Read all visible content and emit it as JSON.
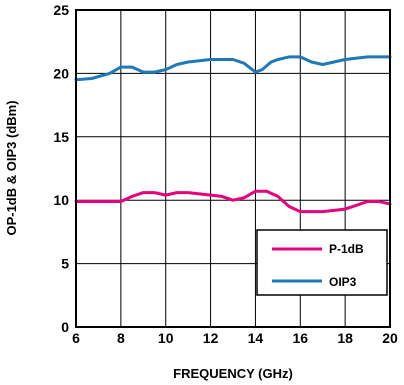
{
  "chart_data": {
    "type": "line",
    "title": "",
    "xlabel": "FREQUENCY (GHz)",
    "ylabel": "OP-1dB & OIP3 (dBm)",
    "xlim": [
      6,
      20
    ],
    "ylim": [
      0,
      25
    ],
    "x_ticks": [
      "6",
      "8",
      "10",
      "12",
      "14",
      "16",
      "18",
      "20"
    ],
    "y_ticks": [
      "0",
      "5",
      "10",
      "15",
      "20",
      "25"
    ],
    "grid": true,
    "legend_position": "bottom-right",
    "series": [
      {
        "name": "P-1dB",
        "color": "#e6007e",
        "x": [
          6.0,
          7.0,
          8.0,
          8.5,
          9.0,
          9.5,
          10.0,
          10.5,
          11.0,
          11.5,
          12.0,
          12.5,
          13.0,
          13.5,
          14.0,
          14.5,
          15.0,
          15.5,
          16.0,
          17.0,
          18.0,
          18.5,
          19.0,
          19.5,
          20.0
        ],
        "values": [
          9.9,
          9.9,
          9.9,
          10.3,
          10.6,
          10.6,
          10.4,
          10.6,
          10.6,
          10.5,
          10.4,
          10.3,
          10.0,
          10.2,
          10.7,
          10.7,
          10.3,
          9.5,
          9.1,
          9.1,
          9.3,
          9.6,
          9.9,
          9.9,
          9.7
        ]
      },
      {
        "name": "OIP3",
        "color": "#1f78b8",
        "x": [
          6.0,
          6.7,
          7.5,
          8.0,
          8.5,
          9.0,
          9.5,
          10.0,
          10.5,
          11.0,
          11.5,
          12.0,
          12.5,
          13.0,
          13.5,
          14.0,
          14.3,
          14.7,
          15.0,
          15.5,
          16.0,
          16.5,
          17.0,
          17.5,
          18.0,
          19.0,
          20.0
        ],
        "values": [
          19.5,
          19.6,
          20.0,
          20.5,
          20.5,
          20.1,
          20.1,
          20.3,
          20.7,
          20.9,
          21.0,
          21.1,
          21.1,
          21.1,
          20.8,
          20.1,
          20.3,
          20.9,
          21.1,
          21.3,
          21.3,
          20.9,
          20.7,
          20.9,
          21.1,
          21.3,
          21.3
        ]
      }
    ]
  }
}
